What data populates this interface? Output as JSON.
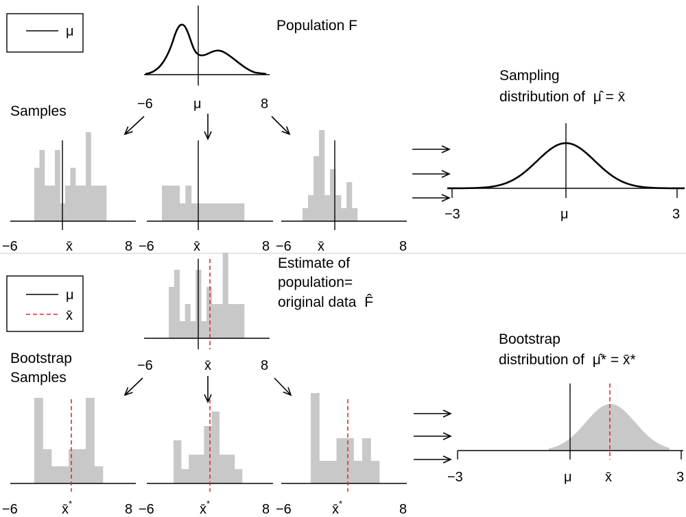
{
  "colors": {
    "bar_fill": "#c8c8c8",
    "mu_line": "#000000",
    "xbar_line": "#e8262a",
    "curve": "#000000",
    "panel_divider": "#cccccc"
  },
  "top": {
    "legend": {
      "mu_label": "μ"
    },
    "population": {
      "title": "Population F",
      "tick_left": "−6",
      "tick_mid": "μ",
      "tick_right": "8"
    },
    "samples_label": "Samples",
    "sample_panels": [
      {
        "tick_left": "−6",
        "tick_mid": "x̄",
        "tick_right": "8",
        "bars": [
          3,
          4,
          2,
          2,
          4,
          1,
          2,
          3,
          2,
          2,
          5,
          2,
          2,
          2
        ]
      },
      {
        "tick_left": "−6",
        "tick_mid": "x̄",
        "tick_right": "8",
        "bars": [
          2,
          2,
          2,
          1,
          2,
          1,
          1,
          1,
          1,
          1,
          1,
          1,
          1,
          1
        ]
      },
      {
        "tick_left": "−6",
        "tick_mid": "x̄",
        "tick_right": "8",
        "bars": [
          1,
          2,
          5,
          7,
          2,
          4,
          2,
          1,
          3,
          1
        ]
      }
    ],
    "sampling": {
      "title_line1": "Sampling",
      "title_line2": "distribution of",
      "title_expr": "μ̂ = x̄",
      "tick_left": "−3",
      "tick_mid": "μ",
      "tick_right": "3"
    }
  },
  "bottom": {
    "legend": {
      "mu_label": "μ",
      "xbar_label": "x̄"
    },
    "estimate": {
      "title_line1": "Estimate of",
      "title_line2": "population=",
      "title_line3": "original data",
      "title_F": "F̂",
      "tick_left": "−6",
      "tick_mid": "x̄",
      "tick_right": "8",
      "bars": [
        3,
        4,
        1,
        2,
        1,
        4,
        1,
        3,
        2,
        2,
        5,
        2,
        2,
        2
      ]
    },
    "bootstrap_label_line1": "Bootstrap",
    "bootstrap_label_line2": "Samples",
    "bootstrap_panels": [
      {
        "tick_left": "−6",
        "tick_mid": "x̄",
        "tick_mid_sup": "*",
        "tick_right": "8",
        "bars": [
          5,
          2,
          1,
          1,
          2,
          2,
          5,
          1
        ]
      },
      {
        "tick_left": "−6",
        "tick_mid": "x̄",
        "tick_mid_sup": "*",
        "tick_right": "8",
        "bars": [
          3,
          1,
          2,
          2,
          4,
          5,
          2,
          2,
          1
        ]
      },
      {
        "tick_left": "−6",
        "tick_mid": "x̄",
        "tick_mid_sup": "*",
        "tick_right": "8",
        "bars": [
          4,
          1,
          1,
          2,
          2,
          1,
          2,
          1
        ]
      }
    ],
    "bootstrap_dist": {
      "title_line1": "Bootstrap",
      "title_line2": "distribution of",
      "title_expr": "μ̂* = x̄*",
      "tick_left": "−3",
      "tick_mu": "μ",
      "tick_xbar": "x̄",
      "tick_right": "3"
    }
  }
}
